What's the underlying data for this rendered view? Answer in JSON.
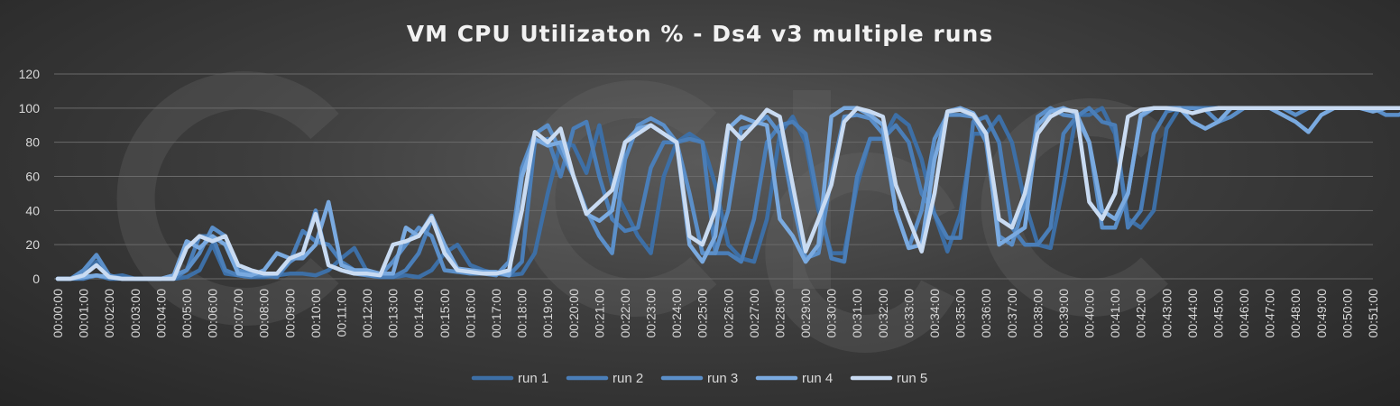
{
  "chart_data": {
    "type": "line",
    "title": "VM CPU Utilizaton % - Ds4 v3 multiple runs",
    "xlabel": "",
    "ylabel": "",
    "ylim": [
      0,
      120
    ],
    "y_ticks": [
      0,
      20,
      40,
      60,
      80,
      100,
      120
    ],
    "x_ticks": [
      "00:00:00",
      "00:01:00",
      "00:02:00",
      "00:03:00",
      "00:04:00",
      "00:05:00",
      "00:06:00",
      "00:07:00",
      "00:08:00",
      "00:09:00",
      "00:10:00",
      "00:11:00",
      "00:12:00",
      "00:13:00",
      "00:14:00",
      "00:15:00",
      "00:16:00",
      "00:17:00",
      "00:18:00",
      "00:19:00",
      "00:20:00",
      "00:21:00",
      "00:22:00",
      "00:23:00",
      "00:24:00",
      "00:25:00",
      "00:26:00",
      "00:27:00",
      "00:28:00",
      "00:29:00",
      "00:30:00",
      "00:31:00",
      "00:32:00",
      "00:33:00",
      "00:34:00",
      "00:35:00",
      "00:36:00",
      "00:37:00",
      "00:38:00",
      "00:39:00",
      "00:40:00",
      "00:41:00",
      "00:42:00",
      "00:43:00",
      "00:44:00",
      "00:45:00",
      "00:46:00",
      "00:47:00",
      "00:48:00",
      "00:49:00",
      "00:50:00",
      "00:51:00"
    ],
    "x_interval_seconds": 30,
    "grid": true,
    "legend_position": "bottom",
    "series": [
      {
        "name": "run 1",
        "color": "#3d6fa6",
        "values": [
          0,
          0,
          2,
          10,
          1,
          2,
          0,
          0,
          0,
          0,
          1,
          5,
          20,
          3,
          2,
          1,
          1,
          2,
          3,
          3,
          2,
          5,
          12,
          18,
          4,
          2,
          1,
          2,
          1,
          5,
          15,
          20,
          8,
          5,
          3,
          2,
          3,
          15,
          50,
          80,
          78,
          62,
          90,
          55,
          40,
          25,
          15,
          60,
          80,
          85,
          80,
          55,
          20,
          12,
          10,
          35,
          85,
          95,
          80,
          40,
          15,
          15,
          55,
          82,
          82,
          96,
          90,
          70,
          38,
          16,
          38,
          85,
          85,
          95,
          80,
          45,
          20,
          18,
          55,
          96,
          96,
          100,
          85,
          35,
          30,
          40,
          88,
          100,
          100,
          100,
          100,
          100,
          100,
          100,
          100,
          100,
          100,
          100,
          100,
          100,
          100,
          100,
          100,
          100,
          100,
          100,
          100,
          100,
          100,
          100,
          100,
          100,
          100
        ]
      },
      {
        "name": "run 2",
        "color": "#4a7eb8",
        "values": [
          0,
          0,
          0,
          2,
          0,
          0,
          0,
          0,
          0,
          0,
          5,
          25,
          25,
          5,
          2,
          1,
          2,
          1,
          10,
          28,
          22,
          20,
          10,
          5,
          2,
          1,
          1,
          5,
          15,
          35,
          18,
          5,
          4,
          3,
          3,
          2,
          10,
          80,
          82,
          60,
          88,
          92,
          60,
          35,
          28,
          30,
          65,
          80,
          80,
          82,
          80,
          15,
          15,
          10,
          35,
          80,
          90,
          92,
          85,
          45,
          12,
          10,
          60,
          82,
          82,
          90,
          80,
          50,
          38,
          24,
          24,
          92,
          95,
          80,
          30,
          20,
          20,
          30,
          85,
          95,
          100,
          92,
          90,
          30,
          40,
          85,
          98,
          100,
          100,
          100,
          100,
          100,
          100,
          100,
          100,
          100,
          100,
          100,
          100,
          100,
          100,
          100,
          100,
          100,
          100,
          100,
          100,
          100,
          100,
          100,
          100,
          100,
          100
        ]
      },
      {
        "name": "run 3",
        "color": "#5b8fc9",
        "values": [
          0,
          0,
          5,
          14,
          2,
          0,
          0,
          0,
          0,
          2,
          5,
          15,
          30,
          25,
          5,
          3,
          2,
          3,
          10,
          15,
          40,
          8,
          5,
          3,
          2,
          2,
          10,
          20,
          30,
          25,
          5,
          4,
          3,
          3,
          2,
          10,
          65,
          85,
          90,
          75,
          60,
          40,
          25,
          15,
          70,
          90,
          94,
          90,
          80,
          50,
          15,
          15,
          40,
          88,
          90,
          95,
          85,
          45,
          12,
          15,
          60,
          95,
          96,
          94,
          85,
          40,
          18,
          40,
          82,
          96,
          96,
          95,
          80,
          25,
          20,
          45,
          95,
          100,
          96,
          95,
          80,
          30,
          30,
          50,
          95,
          100,
          100,
          100,
          100,
          99,
          92,
          95,
          100,
          100,
          100,
          100,
          96,
          100,
          100,
          100,
          100,
          100,
          100,
          96,
          96,
          100,
          100,
          100,
          100,
          100,
          100,
          100,
          100
        ]
      },
      {
        "name": "run 4",
        "color": "#7aaae0",
        "values": [
          0,
          0,
          1,
          2,
          1,
          0,
          0,
          0,
          0,
          2,
          22,
          18,
          25,
          20,
          3,
          2,
          5,
          15,
          12,
          12,
          20,
          45,
          8,
          5,
          5,
          3,
          3,
          30,
          25,
          37,
          20,
          6,
          5,
          4,
          4,
          2,
          60,
          82,
          78,
          80,
          60,
          38,
          34,
          40,
          80,
          88,
          90,
          85,
          80,
          20,
          10,
          25,
          88,
          95,
          92,
          90,
          35,
          25,
          10,
          20,
          95,
          100,
          100,
          96,
          90,
          40,
          18,
          20,
          70,
          98,
          100,
          97,
          85,
          20,
          25,
          30,
          90,
          98,
          100,
          97,
          80,
          40,
          35,
          50,
          96,
          100,
          100,
          100,
          92,
          88,
          92,
          100,
          100,
          100,
          100,
          96,
          92,
          86,
          96,
          100,
          100,
          100,
          98,
          100,
          100,
          100,
          100,
          88,
          92,
          100,
          100,
          100,
          100,
          100,
          100,
          95,
          86,
          100
        ]
      },
      {
        "name": "run 5",
        "color": "#c9dbf2",
        "values": [
          0,
          0,
          2,
          8,
          1,
          0,
          0,
          0,
          0,
          0,
          18,
          25,
          22,
          25,
          8,
          5,
          3,
          3,
          12,
          15,
          38,
          8,
          5,
          3,
          3,
          2,
          20,
          22,
          25,
          36,
          15,
          5,
          4,
          3,
          3,
          5,
          40,
          86,
          80,
          88,
          60,
          38,
          45,
          52,
          80,
          85,
          90,
          85,
          80,
          25,
          20,
          40,
          90,
          82,
          90,
          99,
          95,
          55,
          16,
          35,
          55,
          92,
          100,
          98,
          95,
          55,
          35,
          16,
          50,
          98,
          99,
          96,
          85,
          35,
          30,
          50,
          85,
          95,
          99,
          98,
          45,
          35,
          50,
          95,
          99,
          100,
          100,
          99,
          97,
          99,
          100,
          100,
          100,
          100,
          100,
          100,
          100,
          100,
          100,
          100,
          100,
          100,
          100,
          100,
          100,
          100,
          100,
          100,
          100,
          100,
          100,
          100,
          100
        ]
      }
    ]
  }
}
